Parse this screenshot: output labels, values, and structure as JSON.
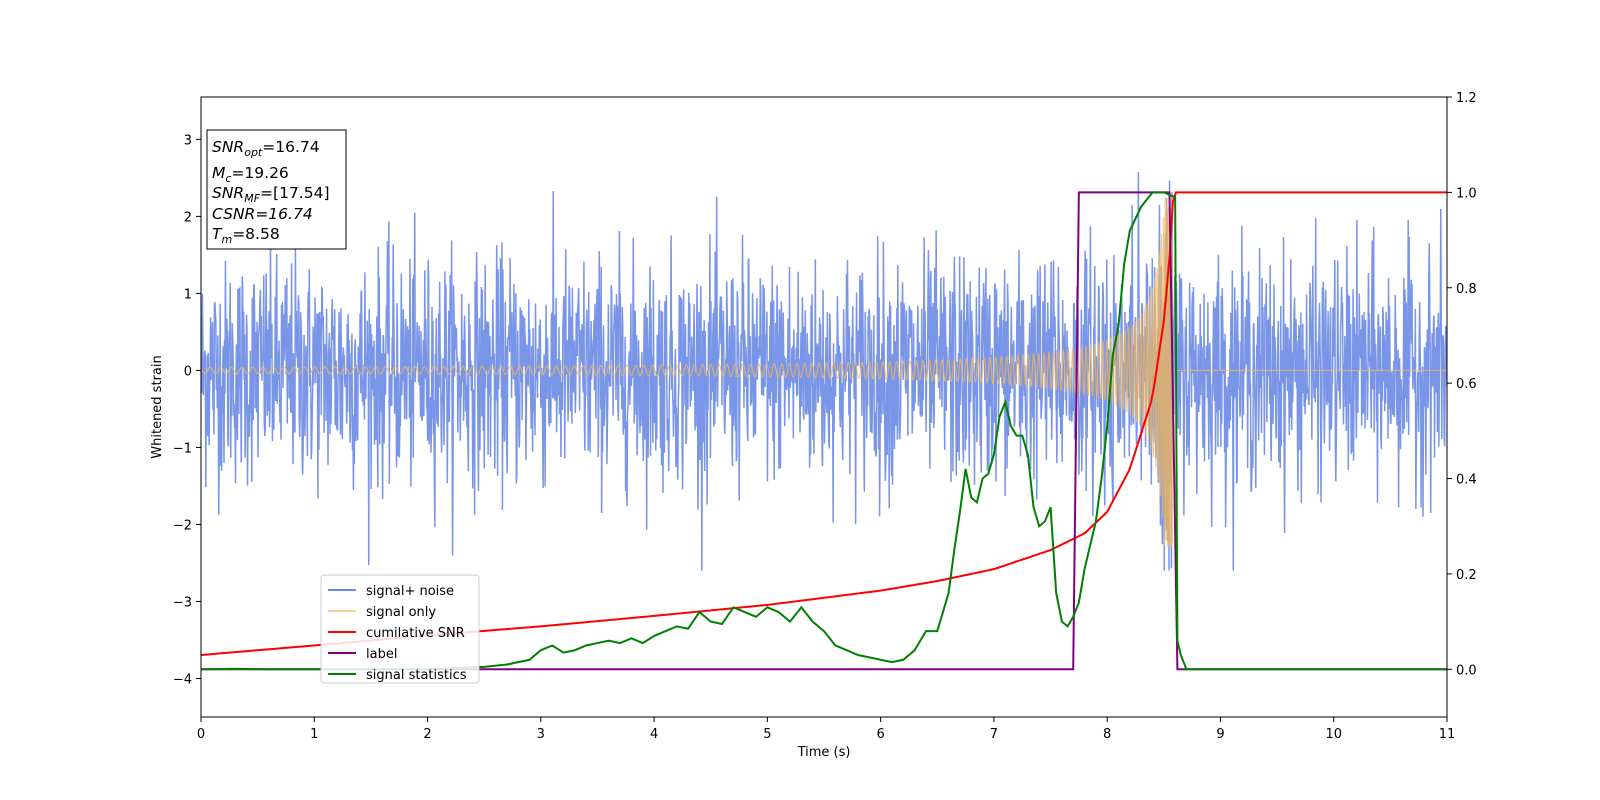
{
  "chart_data": {
    "type": "line",
    "xlabel": "Time (s)",
    "ylabel_left": "Whitened strain",
    "xlim": [
      0,
      11
    ],
    "ylim_left": [
      -4.5,
      3.55
    ],
    "ylim_right": [
      -0.1,
      1.2
    ],
    "x_ticks": [
      "0",
      "1",
      "2",
      "3",
      "4",
      "5",
      "6",
      "7",
      "8",
      "9",
      "10",
      "11"
    ],
    "y_ticks_left": [
      "3",
      "2",
      "1",
      "0",
      "−1",
      "−2",
      "−3",
      "−4"
    ],
    "y_ticks_right": [
      "1.2",
      "1.0",
      "0.8",
      "0.6",
      "0.4",
      "0.2",
      "0.0"
    ],
    "legend_position": "lower-left",
    "grid": false,
    "info_box": {
      "snr_opt_value": "=16.74",
      "mc_value": "=19.26",
      "snr_mf_value": "=[17.54]",
      "csnr_text": "CSNR=16.74",
      "tm_value": "=8.58"
    },
    "series": [
      {
        "name": "signal+ noise",
        "axis": "left",
        "color": "#6a8ae6",
        "kind": "noise",
        "description_values": {
          "noise_amplitude_typical": 1.6,
          "max": 2.72,
          "min": -2.6
        }
      },
      {
        "name": "signal only",
        "axis": "left",
        "color": "#f5b754",
        "kind": "chirp",
        "merger_time": 8.58,
        "peak_amplitude": 2.3
      },
      {
        "name": "cumilative SNR",
        "axis": "right",
        "color": "#ff0000",
        "x": [
          0,
          1,
          2,
          3,
          4,
          5,
          6,
          6.5,
          7,
          7.5,
          7.8,
          8.0,
          8.2,
          8.4,
          8.5,
          8.55,
          8.58,
          8.6,
          11
        ],
        "y": [
          0.03,
          0.05,
          0.071,
          0.09,
          0.112,
          0.135,
          0.165,
          0.185,
          0.21,
          0.25,
          0.285,
          0.33,
          0.42,
          0.57,
          0.73,
          0.86,
          0.98,
          1.0,
          1.0
        ]
      },
      {
        "name": "label",
        "axis": "right",
        "color": "#800080",
        "x": [
          0,
          7.7,
          7.75,
          8.55,
          8.62,
          11
        ],
        "y": [
          0,
          0,
          1.0,
          1.0,
          0,
          0
        ]
      },
      {
        "name": "signal statistics",
        "axis": "right",
        "color": "#008000",
        "x": [
          0,
          0.3,
          0.6,
          1.0,
          1.5,
          2.0,
          2.3,
          2.5,
          2.7,
          2.9,
          3.0,
          3.1,
          3.2,
          3.3,
          3.4,
          3.5,
          3.6,
          3.7,
          3.8,
          3.9,
          4.0,
          4.1,
          4.2,
          4.3,
          4.4,
          4.5,
          4.6,
          4.7,
          4.8,
          4.9,
          5.0,
          5.1,
          5.2,
          5.3,
          5.4,
          5.5,
          5.6,
          5.7,
          5.8,
          5.9,
          6.0,
          6.1,
          6.2,
          6.3,
          6.4,
          6.5,
          6.55,
          6.6,
          6.65,
          6.7,
          6.75,
          6.8,
          6.85,
          6.9,
          6.95,
          7.0,
          7.05,
          7.1,
          7.15,
          7.2,
          7.25,
          7.3,
          7.35,
          7.4,
          7.45,
          7.5,
          7.55,
          7.6,
          7.65,
          7.7,
          7.75,
          7.8,
          7.85,
          7.9,
          7.95,
          8.0,
          8.05,
          8.1,
          8.15,
          8.2,
          8.3,
          8.4,
          8.5,
          8.55,
          8.6,
          8.62,
          8.65,
          8.7,
          11
        ],
        "y": [
          0.0,
          0.001,
          0.0,
          0.0,
          0.0,
          0.0,
          0.003,
          0.005,
          0.01,
          0.02,
          0.04,
          0.05,
          0.035,
          0.04,
          0.05,
          0.055,
          0.06,
          0.055,
          0.065,
          0.055,
          0.07,
          0.08,
          0.09,
          0.085,
          0.12,
          0.1,
          0.095,
          0.13,
          0.12,
          0.11,
          0.13,
          0.12,
          0.1,
          0.13,
          0.1,
          0.08,
          0.05,
          0.04,
          0.03,
          0.025,
          0.02,
          0.015,
          0.02,
          0.04,
          0.08,
          0.08,
          0.12,
          0.16,
          0.25,
          0.33,
          0.42,
          0.36,
          0.35,
          0.4,
          0.41,
          0.45,
          0.53,
          0.56,
          0.51,
          0.49,
          0.49,
          0.45,
          0.34,
          0.3,
          0.31,
          0.34,
          0.16,
          0.1,
          0.09,
          0.11,
          0.14,
          0.21,
          0.26,
          0.31,
          0.4,
          0.51,
          0.66,
          0.72,
          0.85,
          0.92,
          0.97,
          1.0,
          1.0,
          0.995,
          0.99,
          0.06,
          0.03,
          0.0,
          0.0
        ]
      }
    ]
  }
}
